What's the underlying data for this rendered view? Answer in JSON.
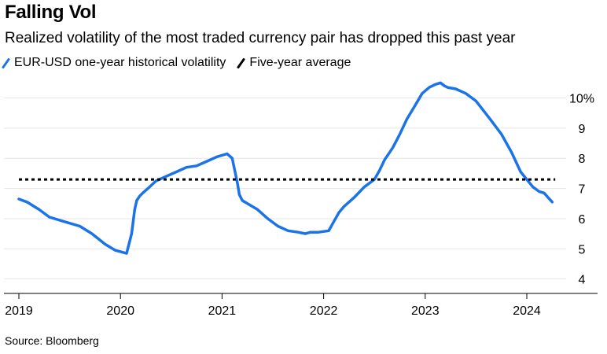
{
  "title": "Falling Vol",
  "subtitle": "Realized volatility of the most traded currency pair has dropped this past year",
  "source": "Source: Bloomberg",
  "colors": {
    "series": "#1a73e8",
    "average": "#000000",
    "grid": "#e6e6e6",
    "axis": "#000000"
  },
  "chart_data": {
    "type": "line",
    "title": "Falling Vol",
    "subtitle": "Realized volatility of the most traded currency pair has dropped this past year",
    "xlabel": "",
    "ylabel": "",
    "xlim": [
      2018.95,
      2024.55
    ],
    "ylim": [
      3.6,
      10.9
    ],
    "grid": true,
    "legend_position": "top-left",
    "x_ticks": [
      2019,
      2020,
      2021,
      2022,
      2023,
      2024
    ],
    "x_tick_labels": [
      "2019",
      "2020",
      "2021",
      "2022",
      "2023",
      "2024"
    ],
    "y_ticks": [
      4,
      5,
      6,
      7,
      8,
      9,
      10
    ],
    "y_tick_labels": [
      "4",
      "5",
      "6",
      "7",
      "8",
      "9",
      "10%"
    ],
    "series": [
      {
        "name": "EUR-USD one-year historical volatility",
        "color": "#1a73e8",
        "style": "solid",
        "x": [
          2019.0,
          2019.08,
          2019.2,
          2019.3,
          2019.45,
          2019.6,
          2019.72,
          2019.85,
          2019.95,
          2020.06,
          2020.11,
          2020.14,
          2020.16,
          2020.19,
          2020.22,
          2020.27,
          2020.35,
          2020.45,
          2020.55,
          2020.65,
          2020.75,
          2020.85,
          2020.95,
          2021.05,
          2021.1,
          2021.15,
          2021.17,
          2021.2,
          2021.25,
          2021.35,
          2021.45,
          2021.55,
          2021.65,
          2021.75,
          2021.82,
          2021.87,
          2021.95,
          2022.05,
          2022.1,
          2022.15,
          2022.2,
          2022.3,
          2022.4,
          2022.5,
          2022.55,
          2022.6,
          2022.68,
          2022.75,
          2022.82,
          2022.9,
          2022.97,
          2023.04,
          2023.1,
          2023.15,
          2023.19,
          2023.22,
          2023.3,
          2023.4,
          2023.5,
          2023.57,
          2023.65,
          2023.75,
          2023.85,
          2023.94,
          2024.0,
          2024.06,
          2024.12,
          2024.17,
          2024.21,
          2024.25
        ],
        "values": [
          6.65,
          6.55,
          6.3,
          6.05,
          5.9,
          5.75,
          5.5,
          5.15,
          4.95,
          4.85,
          5.5,
          6.3,
          6.6,
          6.75,
          6.85,
          7.0,
          7.25,
          7.4,
          7.55,
          7.7,
          7.75,
          7.9,
          8.05,
          8.15,
          8.0,
          7.2,
          6.8,
          6.6,
          6.5,
          6.3,
          6.0,
          5.75,
          5.6,
          5.55,
          5.5,
          5.55,
          5.55,
          5.6,
          5.9,
          6.2,
          6.4,
          6.7,
          7.05,
          7.3,
          7.6,
          7.95,
          8.35,
          8.8,
          9.3,
          9.75,
          10.15,
          10.35,
          10.45,
          10.5,
          10.4,
          10.35,
          10.3,
          10.15,
          9.9,
          9.6,
          9.25,
          8.8,
          8.2,
          7.55,
          7.3,
          7.05,
          6.9,
          6.85,
          6.7,
          6.55
        ]
      },
      {
        "name": "Five-year average",
        "color": "#000000",
        "style": "dotted",
        "x": [
          2019.0,
          2024.28
        ],
        "values": [
          7.3,
          7.3
        ]
      }
    ]
  }
}
